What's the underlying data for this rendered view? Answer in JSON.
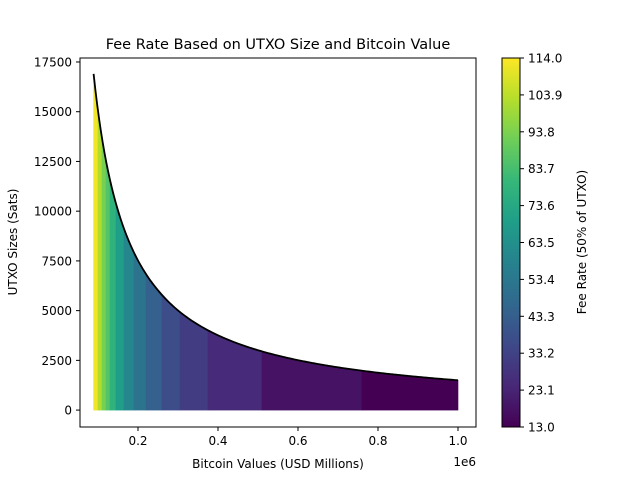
{
  "chart_data": {
    "type": "area",
    "title": "Fee Rate Based on UTXO Size and Bitcoin Value",
    "xlabel": "Bitcoin Values (USD Millions)",
    "ylabel": "UTXO Sizes (Sats)",
    "x_offset_label": "1e6",
    "xlim": [
      55000,
      1045000
    ],
    "ylim": [
      -850,
      17700
    ],
    "xticks": [
      200000,
      400000,
      600000,
      800000,
      1000000
    ],
    "xtick_labels": [
      "0.2",
      "0.4",
      "0.6",
      "0.8",
      "1.0"
    ],
    "yticks": [
      0,
      2500,
      5000,
      7500,
      10000,
      12500,
      15000,
      17500
    ],
    "ytick_labels": [
      "0",
      "2500",
      "5000",
      "7500",
      "10000",
      "12500",
      "15000",
      "17500"
    ],
    "curve": {
      "x": [
        89000,
        100000,
        120000,
        150000,
        200000,
        250000,
        300000,
        400000,
        500000,
        600000,
        700000,
        800000,
        900000,
        1000000
      ],
      "y": [
        16900,
        15040,
        12530,
        10030,
        7520,
        6020,
        5010,
        3760,
        3010,
        2510,
        2150,
        1880,
        1670,
        1500
      ]
    },
    "fill_bands": [
      {
        "x_start": 89000,
        "x_end": 100000,
        "fee_rate": 112
      },
      {
        "x_start": 100000,
        "x_end": 110000,
        "fee_rate": 102
      },
      {
        "x_start": 110000,
        "x_end": 120000,
        "fee_rate": 93
      },
      {
        "x_start": 120000,
        "x_end": 130000,
        "fee_rate": 86
      },
      {
        "x_start": 130000,
        "x_end": 145000,
        "fee_rate": 78
      },
      {
        "x_start": 145000,
        "x_end": 165000,
        "fee_rate": 69
      },
      {
        "x_start": 165000,
        "x_end": 190000,
        "fee_rate": 60
      },
      {
        "x_start": 190000,
        "x_end": 220000,
        "fee_rate": 52
      },
      {
        "x_start": 220000,
        "x_end": 260000,
        "fee_rate": 44
      },
      {
        "x_start": 260000,
        "x_end": 305000,
        "fee_rate": 37
      },
      {
        "x_start": 305000,
        "x_end": 375000,
        "fee_rate": 31
      },
      {
        "x_start": 375000,
        "x_end": 510000,
        "fee_rate": 25
      },
      {
        "x_start": 510000,
        "x_end": 760000,
        "fee_rate": 18
      },
      {
        "x_start": 760000,
        "x_end": 1000000,
        "fee_rate": 13
      }
    ],
    "colorbar": {
      "label": "Fee Rate (50% of UTXO)",
      "range": [
        13.0,
        114.0
      ],
      "ticks": [
        "13.0",
        "23.1",
        "33.2",
        "43.3",
        "53.4",
        "63.5",
        "73.6",
        "83.7",
        "93.8",
        "103.9",
        "114.0"
      ],
      "colormap": "viridis",
      "stops": [
        "#440154",
        "#482878",
        "#3e4989",
        "#31688e",
        "#26828e",
        "#1f9e89",
        "#35b779",
        "#6ece58",
        "#b5de2b",
        "#fde725"
      ]
    },
    "grid": false,
    "legend": "none"
  }
}
